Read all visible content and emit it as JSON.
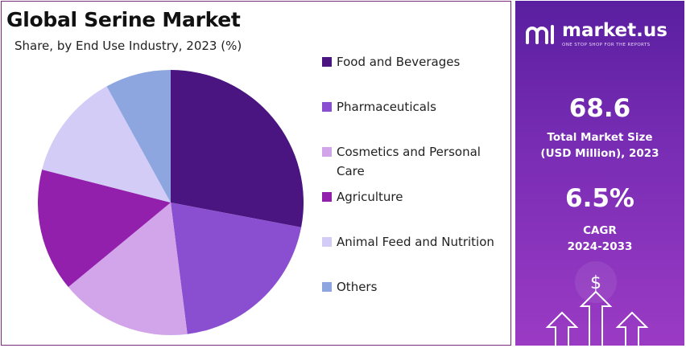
{
  "title": "Global Serine Market",
  "subtitle": "Share, by End Use Industry, 2023 (%)",
  "chart_data": {
    "type": "pie",
    "title": "Global Serine Market",
    "subtitle": "Share, by End Use Industry, 2023 (%)",
    "categories": [
      "Food and Beverages",
      "Pharmaceuticals",
      "Cosmetics and Personal Care",
      "Agriculture",
      "Animal Feed and Nutrition",
      "Others"
    ],
    "values": [
      28,
      20,
      16,
      15,
      13,
      8
    ],
    "colors": [
      "#4a1580",
      "#8a4fd0",
      "#d2a5ea",
      "#9320ad",
      "#d2ccf6",
      "#8ea6e0"
    ],
    "legend": "right"
  },
  "legend": {
    "items": [
      {
        "label": "Food and Beverages",
        "color": "#4a1580"
      },
      {
        "label": "Pharmaceuticals",
        "color": "#8a4fd0"
      },
      {
        "label": "Cosmetics and Personal Care",
        "color": "#d2a5ea"
      },
      {
        "label": "Agriculture",
        "color": "#9320ad"
      },
      {
        "label": "Animal Feed and Nutrition",
        "color": "#d2ccf6"
      },
      {
        "label": "Others",
        "color": "#8ea6e0"
      }
    ]
  },
  "side_panel": {
    "brand": "market.us",
    "tagline": "ONE STOP SHOP FOR THE REPORTS",
    "market_size_value": "68.6",
    "market_size_label_1": "Total Market Size",
    "market_size_label_2": "(USD Million), 2023",
    "cagr_value": "6.5%",
    "cagr_label_1": "CAGR",
    "cagr_label_2": "2024-2033",
    "currency_symbol": "$"
  }
}
